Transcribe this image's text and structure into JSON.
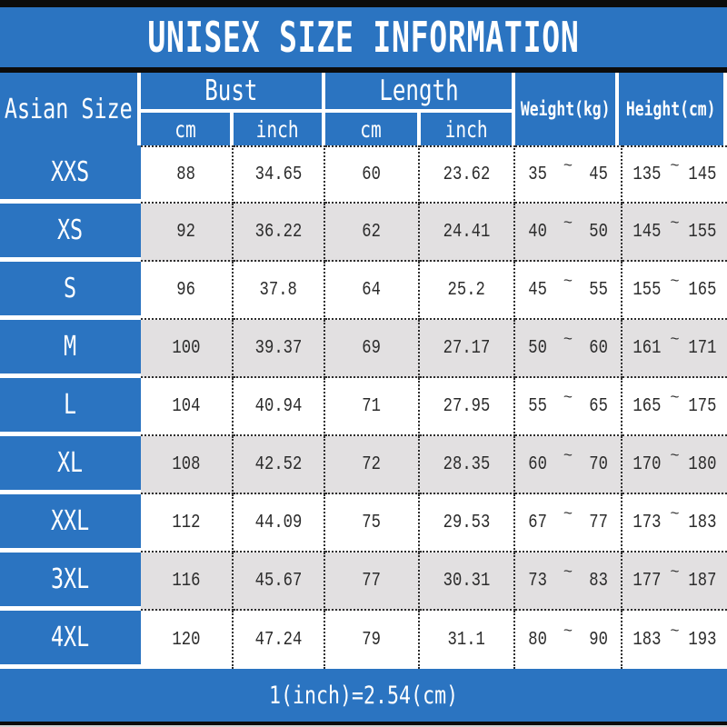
{
  "title": "UNISEX SIZE INFORMATION",
  "header": {
    "size_column": "Asian Size",
    "bust": "Bust",
    "length": "Length",
    "cm": "cm",
    "inch": "inch",
    "weight": "Weight(kg)",
    "height": "Height(cm)"
  },
  "symbols": {
    "tilde": "~"
  },
  "rows": [
    {
      "size": "XXS",
      "bust_cm": "88",
      "bust_inch": "34.65",
      "length_cm": "60",
      "length_inch": "23.62",
      "weight_min": "35",
      "weight_max": "45",
      "height_min": "135",
      "height_max": "145"
    },
    {
      "size": "XS",
      "bust_cm": "92",
      "bust_inch": "36.22",
      "length_cm": "62",
      "length_inch": "24.41",
      "weight_min": "40",
      "weight_max": "50",
      "height_min": "145",
      "height_max": "155"
    },
    {
      "size": "S",
      "bust_cm": "96",
      "bust_inch": "37.8",
      "length_cm": "64",
      "length_inch": "25.2",
      "weight_min": "45",
      "weight_max": "55",
      "height_min": "155",
      "height_max": "165"
    },
    {
      "size": "M",
      "bust_cm": "100",
      "bust_inch": "39.37",
      "length_cm": "69",
      "length_inch": "27.17",
      "weight_min": "50",
      "weight_max": "60",
      "height_min": "161",
      "height_max": "171"
    },
    {
      "size": "L",
      "bust_cm": "104",
      "bust_inch": "40.94",
      "length_cm": "71",
      "length_inch": "27.95",
      "weight_min": "55",
      "weight_max": "65",
      "height_min": "165",
      "height_max": "175"
    },
    {
      "size": "XL",
      "bust_cm": "108",
      "bust_inch": "42.52",
      "length_cm": "72",
      "length_inch": "28.35",
      "weight_min": "60",
      "weight_max": "70",
      "height_min": "170",
      "height_max": "180"
    },
    {
      "size": "XXL",
      "bust_cm": "112",
      "bust_inch": "44.09",
      "length_cm": "75",
      "length_inch": "29.53",
      "weight_min": "67",
      "weight_max": "77",
      "height_min": "173",
      "height_max": "183"
    },
    {
      "size": "3XL",
      "bust_cm": "116",
      "bust_inch": "45.67",
      "length_cm": "77",
      "length_inch": "30.31",
      "weight_min": "73",
      "weight_max": "83",
      "height_min": "177",
      "height_max": "187"
    },
    {
      "size": "4XL",
      "bust_cm": "120",
      "bust_inch": "47.24",
      "length_cm": "79",
      "length_inch": "31.1",
      "weight_min": "80",
      "weight_max": "90",
      "height_min": "183",
      "height_max": "193"
    }
  ],
  "footer": {
    "note": "1(inch)=2.54(cm)"
  },
  "colors": {
    "brand_blue": "#2b74c1",
    "alt_row_gray": "#e2e0e1",
    "strip_black": "#0c0c0c"
  }
}
